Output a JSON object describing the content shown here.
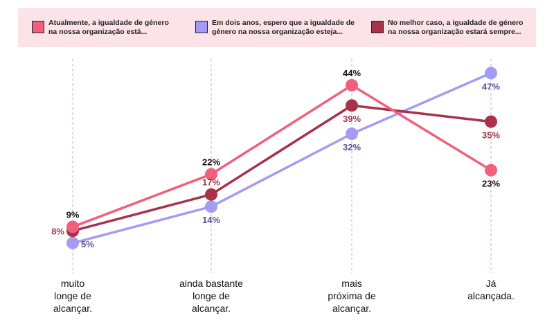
{
  "chart_data": {
    "type": "line",
    "categories": [
      "muito\nlonge de\nalcançar.",
      "ainda bastante\nlonge de\nalcançar.",
      "mais\npróxima de\nalcançar.",
      "Já\nalcançada."
    ],
    "series": [
      {
        "name": "Atualmente, a igualdade de género\nna nossa organização está...",
        "values": [
          9,
          22,
          44,
          23
        ],
        "color": "#f0607c",
        "label_color": "#111111",
        "label_pos": [
          "above",
          "above",
          "above",
          "below"
        ]
      },
      {
        "name": "Em dois anos, espero que a igualdade de\ngénero na nossa organização esteja...",
        "values": [
          5,
          14,
          32,
          47
        ],
        "color": "#a49cf4",
        "label_color": "#5a4fa0",
        "label_pos": [
          "right",
          "below",
          "below",
          "below"
        ]
      },
      {
        "name": "No melhor caso, a igualdade de género\nna nossa organização estará sempre...",
        "values": [
          8,
          17,
          39,
          35
        ],
        "color": "#a8324a",
        "label_color": "#9c3e4e",
        "label_pos": [
          "left",
          "above",
          "below",
          "below"
        ]
      }
    ],
    "value_suffix": "%",
    "ylim": [
      0,
      50
    ],
    "legend_position": "top",
    "grid": "vertical dashed"
  }
}
